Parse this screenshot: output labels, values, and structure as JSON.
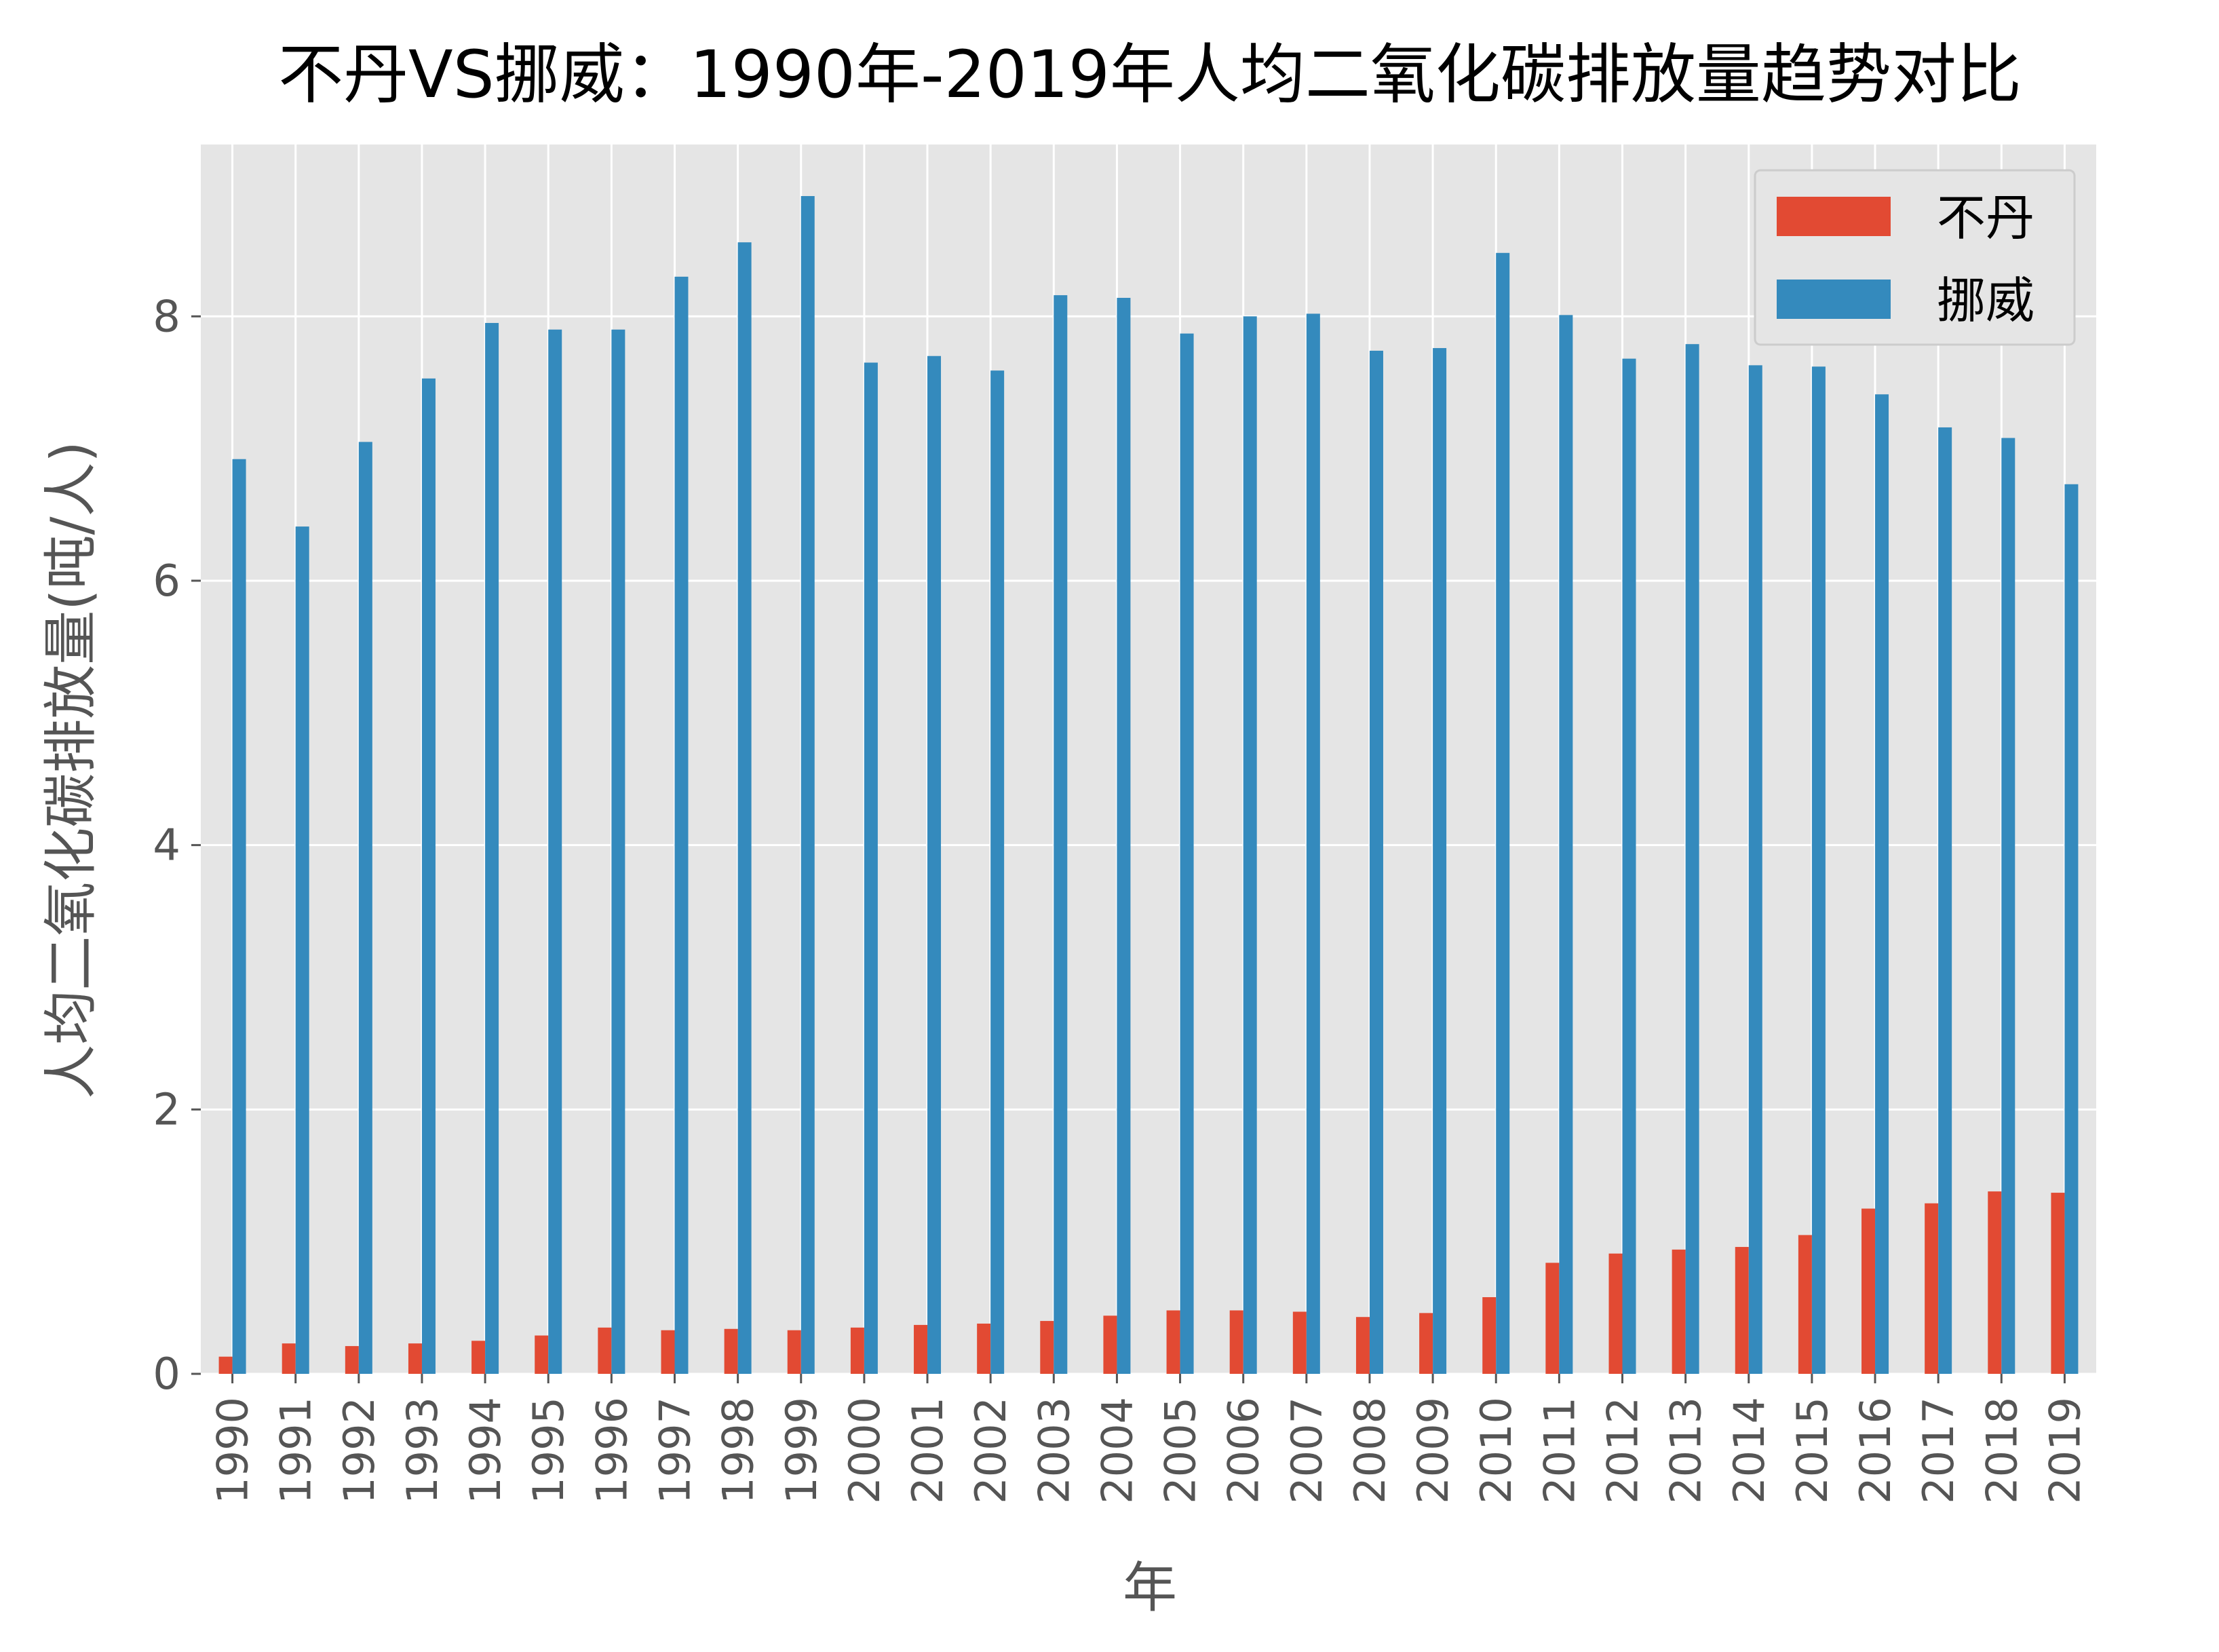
{
  "chart_data": {
    "type": "bar",
    "title": "不丹VS挪威：1990年-2019年人均二氧化碳排放量趋势对比",
    "xlabel": "年",
    "ylabel": "人均二氧化碳排放量(吨/人)",
    "categories": [
      "1990",
      "1991",
      "1992",
      "1993",
      "1994",
      "1995",
      "1996",
      "1997",
      "1998",
      "1999",
      "2000",
      "2001",
      "2002",
      "2003",
      "2004",
      "2005",
      "2006",
      "2007",
      "2008",
      "2009",
      "2010",
      "2011",
      "2012",
      "2013",
      "2014",
      "2015",
      "2016",
      "2017",
      "2018",
      "2019"
    ],
    "series": [
      {
        "name": "不丹",
        "color": "#E24A33",
        "values": [
          0.13,
          0.23,
          0.21,
          0.23,
          0.25,
          0.29,
          0.35,
          0.33,
          0.34,
          0.33,
          0.35,
          0.37,
          0.38,
          0.4,
          0.44,
          0.48,
          0.48,
          0.47,
          0.43,
          0.46,
          0.58,
          0.84,
          0.91,
          0.94,
          0.96,
          1.05,
          1.25,
          1.29,
          1.38,
          1.37
        ]
      },
      {
        "name": "挪威",
        "color": "#348ABD",
        "values": [
          6.92,
          6.41,
          7.05,
          7.53,
          7.95,
          7.9,
          7.9,
          8.3,
          8.56,
          8.91,
          7.65,
          7.7,
          7.59,
          8.16,
          8.14,
          7.87,
          8.0,
          8.02,
          7.74,
          7.76,
          8.48,
          8.01,
          7.68,
          7.79,
          7.63,
          7.62,
          7.41,
          7.16,
          7.08,
          6.73
        ]
      }
    ],
    "ylim": [
      0,
      9.3
    ],
    "yticks": [
      0,
      2,
      4,
      6,
      8
    ],
    "grid": true,
    "legend_position": "top-right",
    "plot_background": "#E5E5E5",
    "grid_color": "#FFFFFF"
  }
}
